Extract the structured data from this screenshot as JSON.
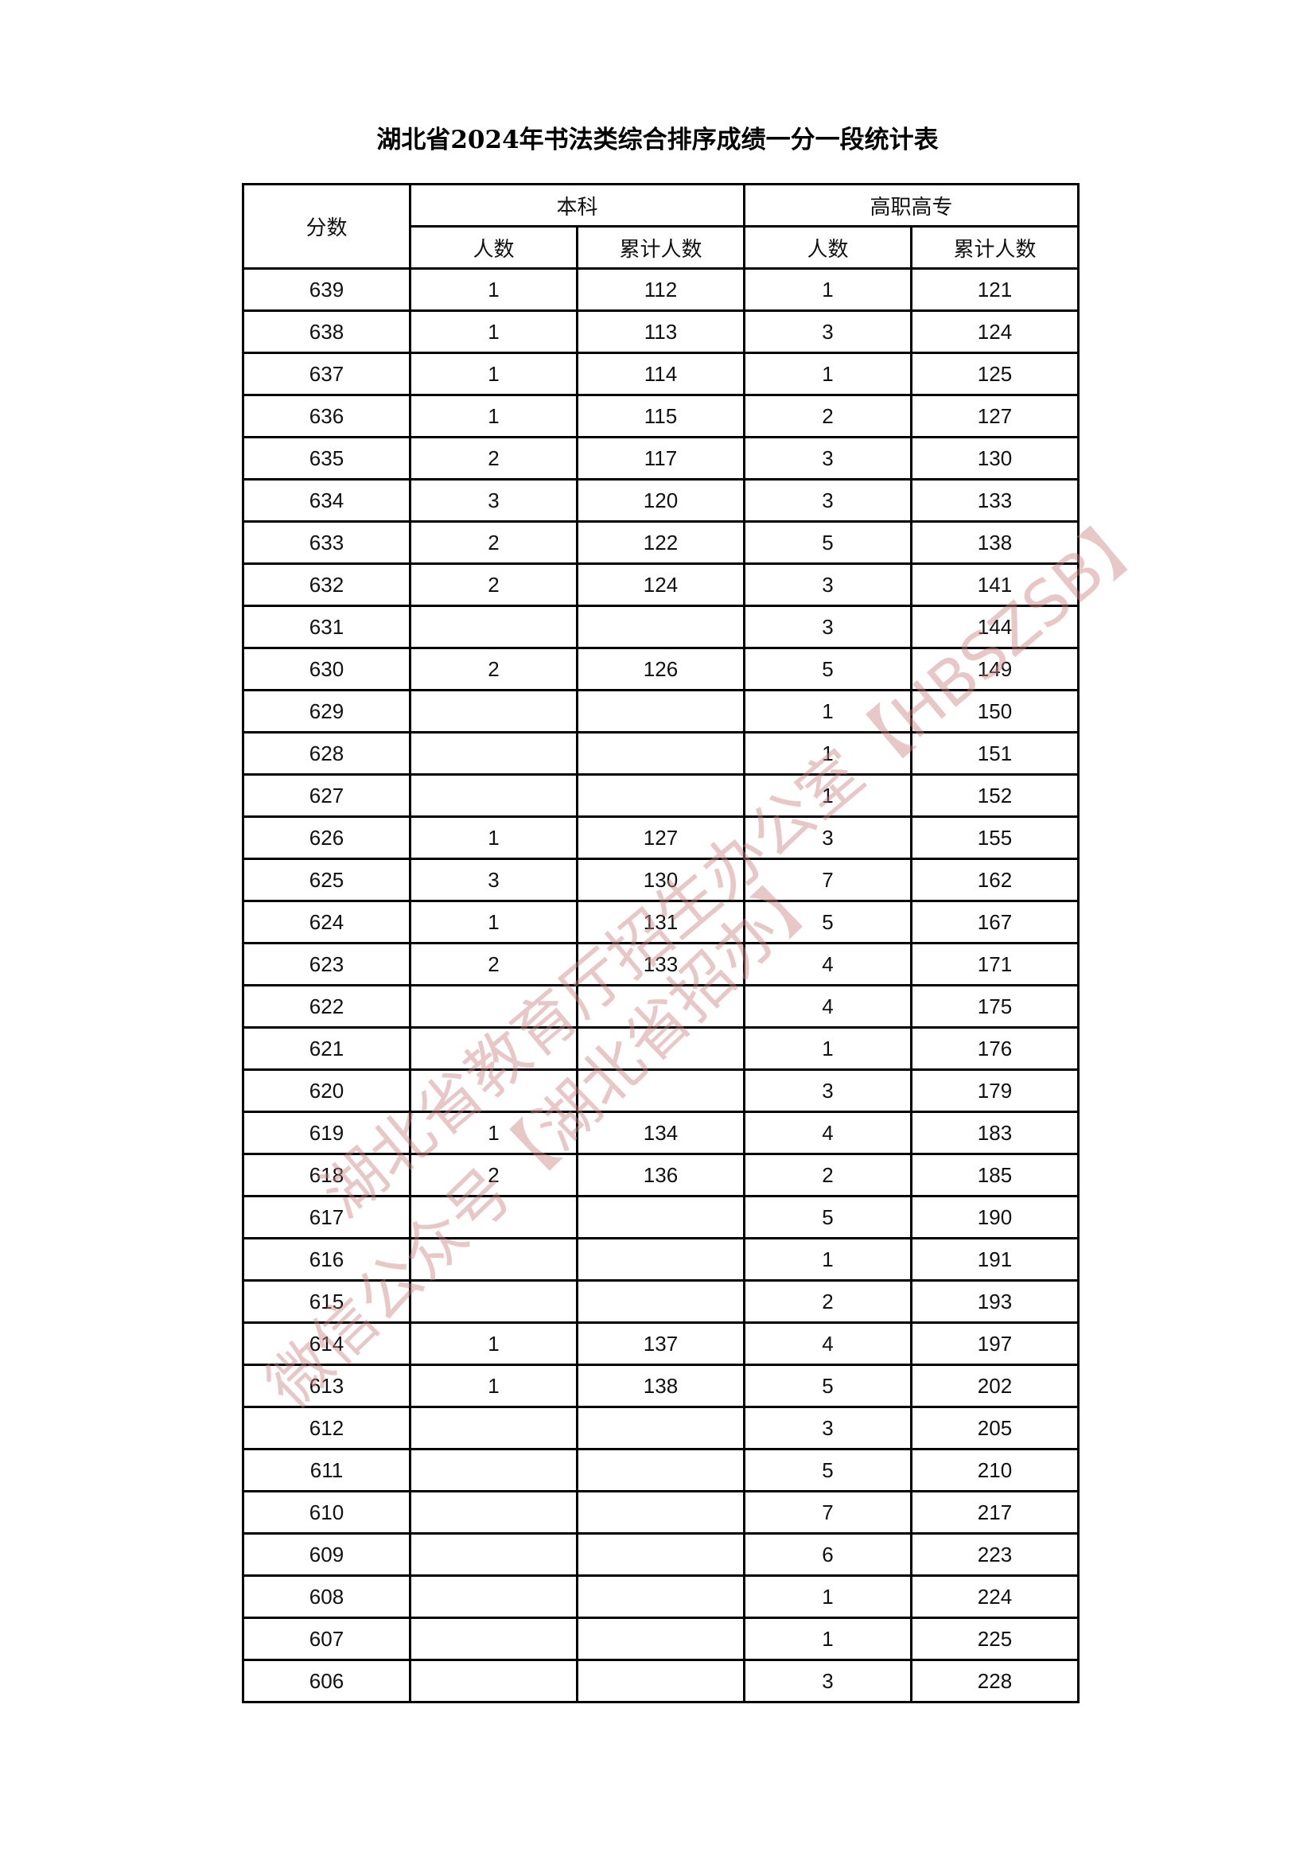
{
  "title": "湖北省2024年书法类综合排序成绩一分一段统计表",
  "headers": {
    "score": "分数",
    "group1": "本科",
    "group2": "高职高专",
    "count": "人数",
    "cumulative": "累计人数"
  },
  "rows": [
    [
      "639",
      "1",
      "112",
      "1",
      "121"
    ],
    [
      "638",
      "1",
      "113",
      "3",
      "124"
    ],
    [
      "637",
      "1",
      "114",
      "1",
      "125"
    ],
    [
      "636",
      "1",
      "115",
      "2",
      "127"
    ],
    [
      "635",
      "2",
      "117",
      "3",
      "130"
    ],
    [
      "634",
      "3",
      "120",
      "3",
      "133"
    ],
    [
      "633",
      "2",
      "122",
      "5",
      "138"
    ],
    [
      "632",
      "2",
      "124",
      "3",
      "141"
    ],
    [
      "631",
      "",
      "",
      "3",
      "144"
    ],
    [
      "630",
      "2",
      "126",
      "5",
      "149"
    ],
    [
      "629",
      "",
      "",
      "1",
      "150"
    ],
    [
      "628",
      "",
      "",
      "1",
      "151"
    ],
    [
      "627",
      "",
      "",
      "1",
      "152"
    ],
    [
      "626",
      "1",
      "127",
      "3",
      "155"
    ],
    [
      "625",
      "3",
      "130",
      "7",
      "162"
    ],
    [
      "624",
      "1",
      "131",
      "5",
      "167"
    ],
    [
      "623",
      "2",
      "133",
      "4",
      "171"
    ],
    [
      "622",
      "",
      "",
      "4",
      "175"
    ],
    [
      "621",
      "",
      "",
      "1",
      "176"
    ],
    [
      "620",
      "",
      "",
      "3",
      "179"
    ],
    [
      "619",
      "1",
      "134",
      "4",
      "183"
    ],
    [
      "618",
      "2",
      "136",
      "2",
      "185"
    ],
    [
      "617",
      "",
      "",
      "5",
      "190"
    ],
    [
      "616",
      "",
      "",
      "1",
      "191"
    ],
    [
      "615",
      "",
      "",
      "2",
      "193"
    ],
    [
      "614",
      "1",
      "137",
      "4",
      "197"
    ],
    [
      "613",
      "1",
      "138",
      "5",
      "202"
    ],
    [
      "612",
      "",
      "",
      "3",
      "205"
    ],
    [
      "611",
      "",
      "",
      "5",
      "210"
    ],
    [
      "610",
      "",
      "",
      "7",
      "217"
    ],
    [
      "609",
      "",
      "",
      "6",
      "223"
    ],
    [
      "608",
      "",
      "",
      "1",
      "224"
    ],
    [
      "607",
      "",
      "",
      "1",
      "225"
    ],
    [
      "606",
      "",
      "",
      "3",
      "228"
    ]
  ],
  "watermark": {
    "line1": "湖北省教育厅招生办公室【HBSZSB】",
    "line2": "微信公众号【湖北省招办】",
    "color": "#d9a3a3"
  }
}
